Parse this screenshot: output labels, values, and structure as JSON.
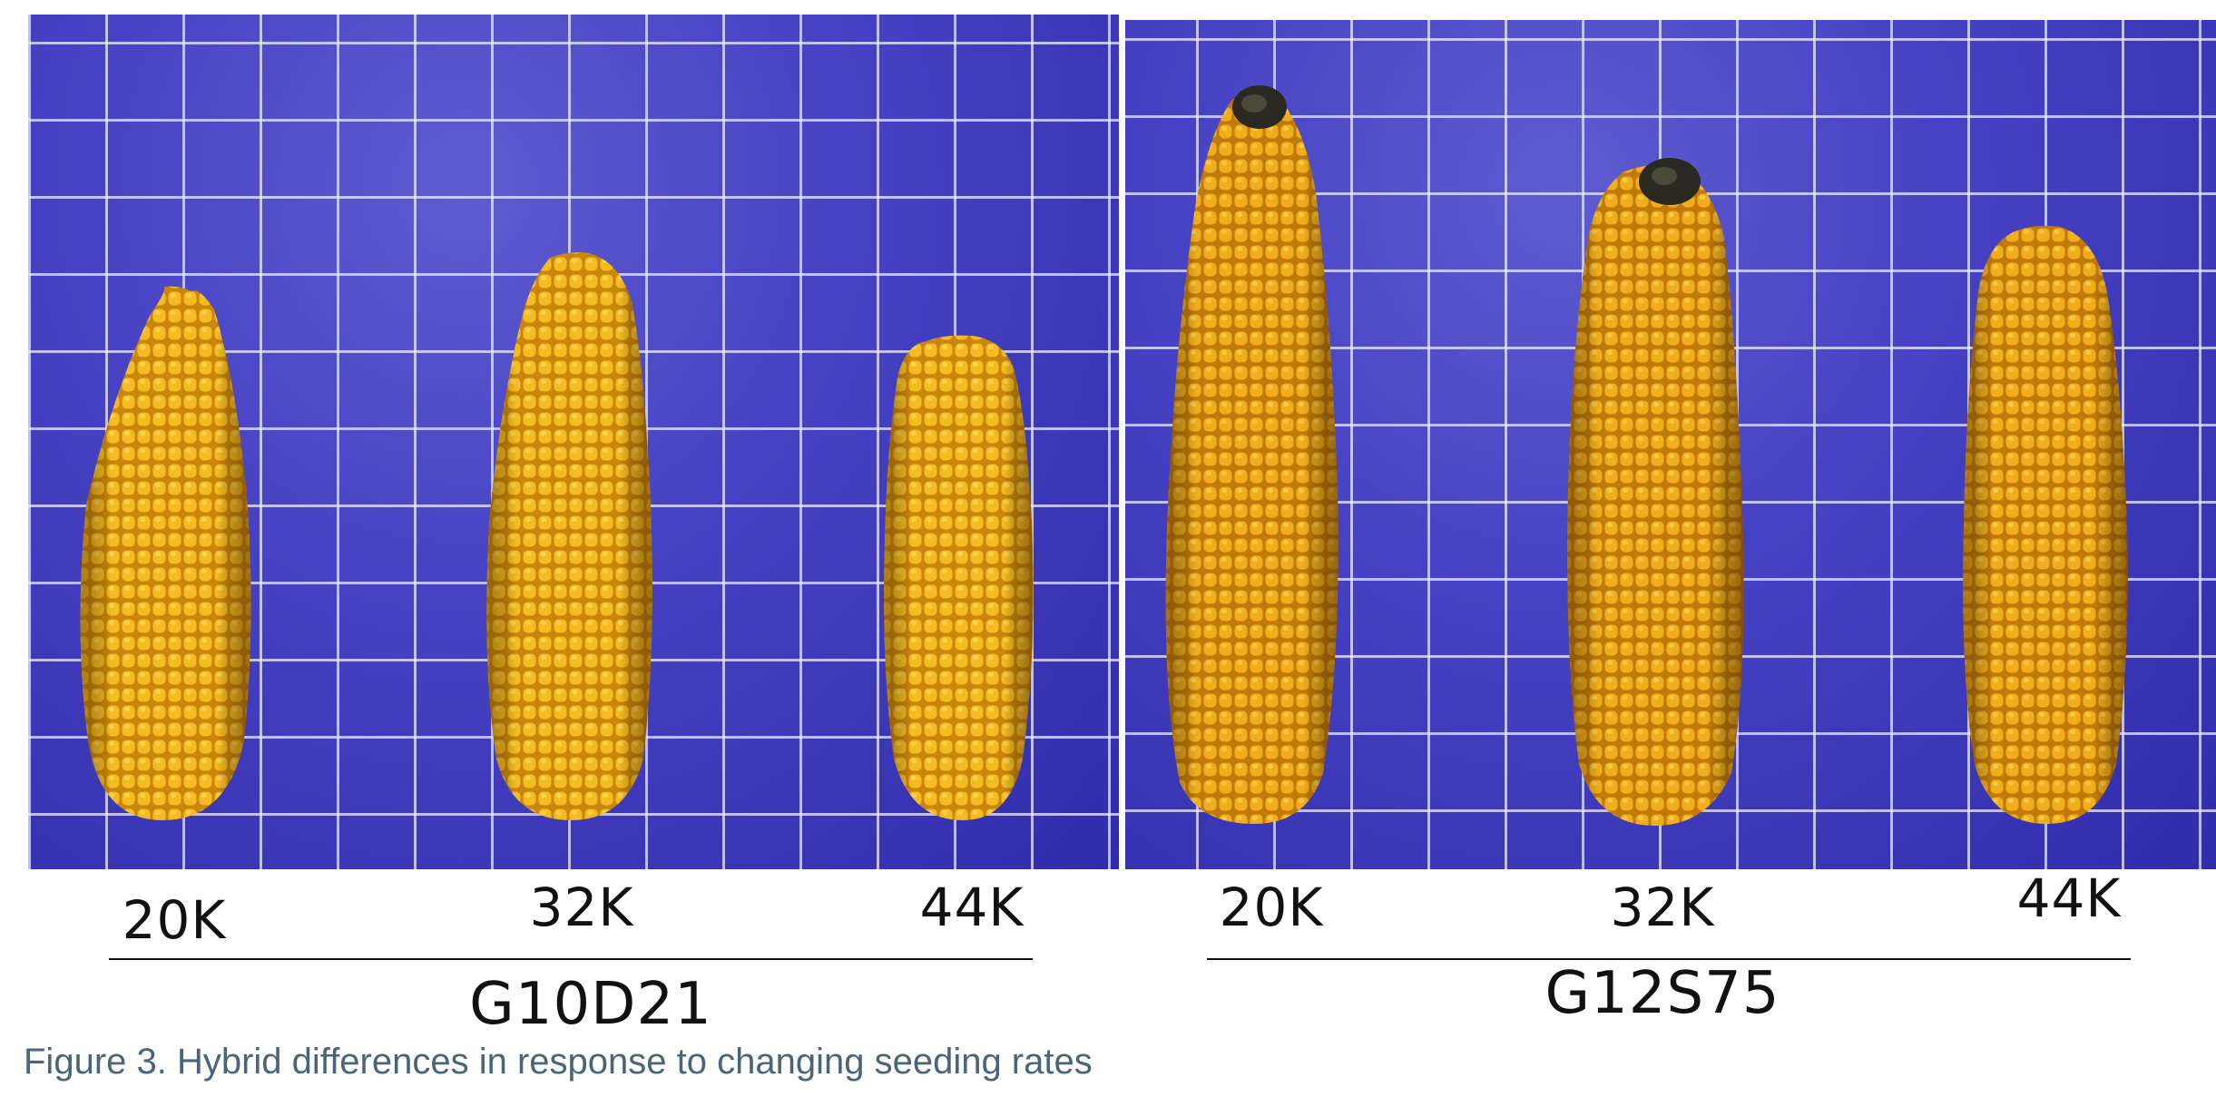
{
  "colors": {
    "board_blue": "#3a36b4",
    "grid_line": "#ebebff",
    "kernel_yellow": "#f2b51c",
    "kernel_shadow": "#c8860a",
    "caption_text": "#4a6578"
  },
  "groups": [
    {
      "hybrid": "G10D21",
      "rates": [
        "20K",
        "32K",
        "44K"
      ]
    },
    {
      "hybrid": "G12S75",
      "rates": [
        "20K",
        "32K",
        "44K"
      ]
    }
  ],
  "caption": "Figure 3. Hybrid differences in response to changing seeding rates"
}
